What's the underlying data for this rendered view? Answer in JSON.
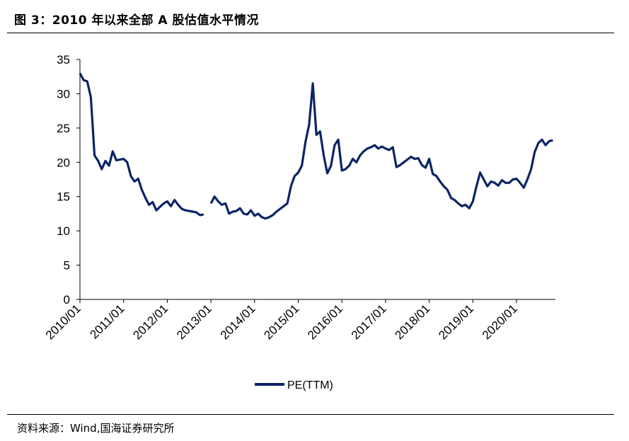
{
  "header": {
    "title": "图 3：2010 年以来全部 A 股估值水平情况"
  },
  "footer": {
    "source": "资料来源：Wind,国海证券研究所"
  },
  "chart_data": {
    "type": "line",
    "title": "",
    "xlabel": "",
    "ylabel": "",
    "ylim": [
      0,
      35
    ],
    "yticks": [
      "0",
      "5",
      "10",
      "15",
      "20",
      "25",
      "30",
      "35"
    ],
    "xticks": [
      "2010/01",
      "2011/01",
      "2012/01",
      "2013/01",
      "2014/01",
      "2015/01",
      "2016/01",
      "2017/01",
      "2018/01",
      "2019/01",
      "2020/01"
    ],
    "xlim": [
      "2010-01",
      "2020-11"
    ],
    "grid": false,
    "legend": "bottom",
    "line_color": "#0b2566",
    "series": [
      {
        "name": "PE(TTM)",
        "start": "2010-01",
        "frequency": "monthly",
        "values": [
          33.0,
          32.0,
          31.8,
          29.5,
          21.0,
          20.2,
          19.0,
          20.2,
          19.5,
          21.6,
          20.3,
          20.4,
          20.5,
          20.0,
          18.0,
          17.2,
          17.6,
          16.0,
          14.8,
          13.8,
          14.2,
          13.0,
          13.5,
          14.0,
          14.3,
          13.6,
          14.5,
          13.8,
          13.2,
          13.0,
          12.9,
          12.8,
          12.7,
          12.3,
          12.4,
          null,
          14.0,
          15.0,
          14.3,
          13.8,
          14.0,
          12.5,
          12.8,
          12.9,
          13.3,
          12.5,
          12.4,
          13.0,
          12.2,
          12.5,
          12.0,
          11.8,
          12.0,
          12.3,
          12.8,
          13.2,
          13.6,
          14.0,
          16.5,
          18.0,
          18.5,
          19.5,
          23.0,
          25.5,
          31.5,
          24.0,
          24.5,
          21.0,
          18.4,
          19.5,
          22.5,
          23.3,
          18.8,
          19.0,
          19.5,
          20.5,
          20.0,
          21.0,
          21.6,
          22.0,
          22.2,
          22.5,
          22.0,
          22.3,
          22.0,
          21.8,
          22.2,
          19.3,
          19.6,
          20.0,
          20.4,
          20.8,
          20.5,
          20.6,
          19.6,
          19.2,
          20.5,
          18.3,
          18.0,
          17.2,
          16.5,
          16.0,
          14.8,
          14.5,
          14.0,
          13.6,
          13.8,
          13.3,
          14.3,
          16.5,
          18.5,
          17.5,
          16.5,
          17.2,
          17.0,
          16.6,
          17.4,
          17.0,
          17.0,
          17.5,
          17.6,
          17.0,
          16.3,
          17.5,
          19.0,
          21.5,
          22.8,
          23.3,
          22.5,
          23.1,
          23.2
        ]
      }
    ]
  }
}
